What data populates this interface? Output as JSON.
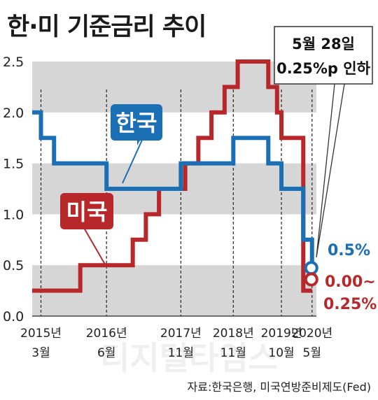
{
  "title": "한·미 기준금리 추이",
  "source": "자료:한국은행, 미국연방준비제도(Fed)",
  "watermark": "디지털타임스",
  "callout": {
    "line1": "5월 28일",
    "line2": "0.25%p 인하"
  },
  "chart_data": {
    "type": "line",
    "title": "한·미 기준금리 추이",
    "xlabel": "",
    "ylabel": "",
    "ylim": [
      0,
      2.5
    ],
    "yticks": [
      0.0,
      0.5,
      1.0,
      1.5,
      2.0,
      2.5
    ],
    "ytick_labels": [
      "0.0",
      "0.5",
      "1.0",
      "1.5",
      "2.0",
      "2.5"
    ],
    "xlim": [
      "2015-01",
      "2020-06"
    ],
    "x_markers": [
      {
        "date": "2015-03",
        "year": "2015년",
        "month": "3월"
      },
      {
        "date": "2016-06",
        "year": "2016년",
        "month": "6월"
      },
      {
        "date": "2017-11",
        "year": "2017년",
        "month": "11월"
      },
      {
        "date": "2018-11",
        "year": "2018년",
        "month": "11월"
      },
      {
        "date": "2019-10",
        "year": "2019년",
        "month": "10월"
      },
      {
        "date": "2020-05",
        "year": "2020년",
        "month": "5월"
      }
    ],
    "grid": "alternating horizontal bands",
    "series": [
      {
        "name": "한국",
        "color": "#1a6fb5",
        "end_label": "0.5%",
        "points": [
          [
            "2015-01",
            2.0
          ],
          [
            "2015-03",
            1.75
          ],
          [
            "2015-06",
            1.5
          ],
          [
            "2016-06",
            1.25
          ],
          [
            "2017-11",
            1.5
          ],
          [
            "2018-11",
            1.75
          ],
          [
            "2019-07",
            1.5
          ],
          [
            "2019-10",
            1.25
          ],
          [
            "2020-03",
            0.75
          ],
          [
            "2020-05",
            0.5
          ]
        ]
      },
      {
        "name": "미국",
        "color": "#b8282a",
        "end_label": "0.00~\n0.25%",
        "points": [
          [
            "2015-01",
            0.25
          ],
          [
            "2015-12",
            0.5
          ],
          [
            "2016-12",
            0.75
          ],
          [
            "2017-03",
            1.0
          ],
          [
            "2017-06",
            1.25
          ],
          [
            "2017-12",
            1.5
          ],
          [
            "2018-03",
            1.75
          ],
          [
            "2018-06",
            2.0
          ],
          [
            "2018-09",
            2.25
          ],
          [
            "2018-12",
            2.5
          ],
          [
            "2019-07",
            2.25
          ],
          [
            "2019-09",
            2.0
          ],
          [
            "2019-10",
            1.75
          ],
          [
            "2020-03",
            0.25
          ],
          [
            "2020-05",
            0.25
          ]
        ]
      }
    ]
  }
}
